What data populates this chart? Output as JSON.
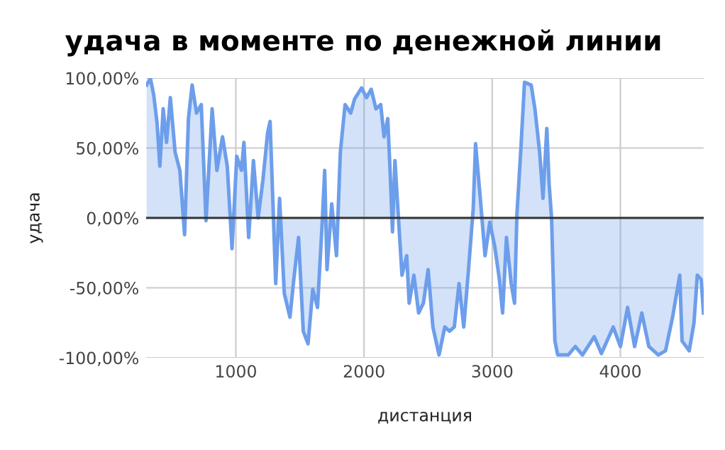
{
  "chart_data": {
    "type": "area",
    "title": "удача в моменте по денежной линии",
    "xlabel": "дистанция",
    "ylabel": "удача",
    "x": [
      304,
      333,
      359,
      385,
      407,
      433,
      459,
      489,
      526,
      563,
      600,
      630,
      659,
      693,
      730,
      767,
      815,
      852,
      896,
      933,
      970,
      1007,
      1044,
      1063,
      1100,
      1137,
      1174,
      1211,
      1248,
      1267,
      1311,
      1341,
      1378,
      1422,
      1452,
      1489,
      1526,
      1563,
      1600,
      1637,
      1674,
      1693,
      1711,
      1748,
      1785,
      1815,
      1852,
      1896,
      1926,
      1981,
      2019,
      2056,
      2093,
      2130,
      2156,
      2185,
      2204,
      2222,
      2241,
      2259,
      2296,
      2333,
      2352,
      2389,
      2426,
      2463,
      2500,
      2537,
      2585,
      2630,
      2667,
      2704,
      2741,
      2778,
      2815,
      2852,
      2870,
      2907,
      2944,
      2981,
      3019,
      3056,
      3081,
      3111,
      3148,
      3174,
      3193,
      3222,
      3252,
      3304,
      3333,
      3370,
      3396,
      3426,
      3444,
      3463,
      3489,
      3511,
      3593,
      3648,
      3704,
      3796,
      3852,
      3944,
      4000,
      4056,
      4111,
      4167,
      4222,
      4296,
      4352,
      4407,
      4463,
      4481,
      4537,
      4574,
      4600,
      4630,
      4648
    ],
    "series": [
      {
        "color": "#6d9eeb",
        "values": [
          95,
          100,
          88,
          68,
          37,
          78,
          54,
          86,
          47,
          34,
          -12,
          71,
          95,
          75,
          81,
          -2,
          78,
          34,
          58,
          37,
          -22,
          44,
          34,
          54,
          -14,
          41,
          0,
          27,
          61,
          69,
          -47,
          14,
          -54,
          -71,
          -44,
          -14,
          -81,
          -90,
          -51,
          -64,
          -3,
          34,
          -37,
          10,
          -27,
          47,
          81,
          75,
          85,
          93,
          86,
          92,
          78,
          81,
          58,
          71,
          32,
          -10,
          41,
          14,
          -41,
          -27,
          -61,
          -41,
          -68,
          -61,
          -37,
          -78,
          -98,
          -78,
          -81,
          -78,
          -47,
          -78,
          -37,
          7,
          53,
          14,
          -27,
          -3,
          -20,
          -44,
          -68,
          -14,
          -47,
          -61,
          3,
          47,
          97,
          95,
          78,
          47,
          14,
          64,
          24,
          0,
          -88,
          -98,
          -98,
          -92,
          -98,
          -85,
          -97,
          -78,
          -92,
          -64,
          -92,
          -68,
          -92,
          -98,
          -95,
          -71,
          -41,
          -88,
          -95,
          -75,
          -41,
          -44,
          -68
        ]
      }
    ],
    "xlim": [
      300,
      4650
    ],
    "xticks": [
      1000,
      2000,
      3000,
      4000
    ],
    "ylim": [
      -100,
      100
    ],
    "yticks": [
      {
        "value": -100,
        "label": "-100,00%"
      },
      {
        "value": -50,
        "label": "-50,00%"
      },
      {
        "value": 0,
        "label": "0,00%"
      },
      {
        "value": 50,
        "label": "50,00%"
      },
      {
        "value": 100,
        "label": "100,00%"
      }
    ],
    "grid": true,
    "legend": false
  }
}
